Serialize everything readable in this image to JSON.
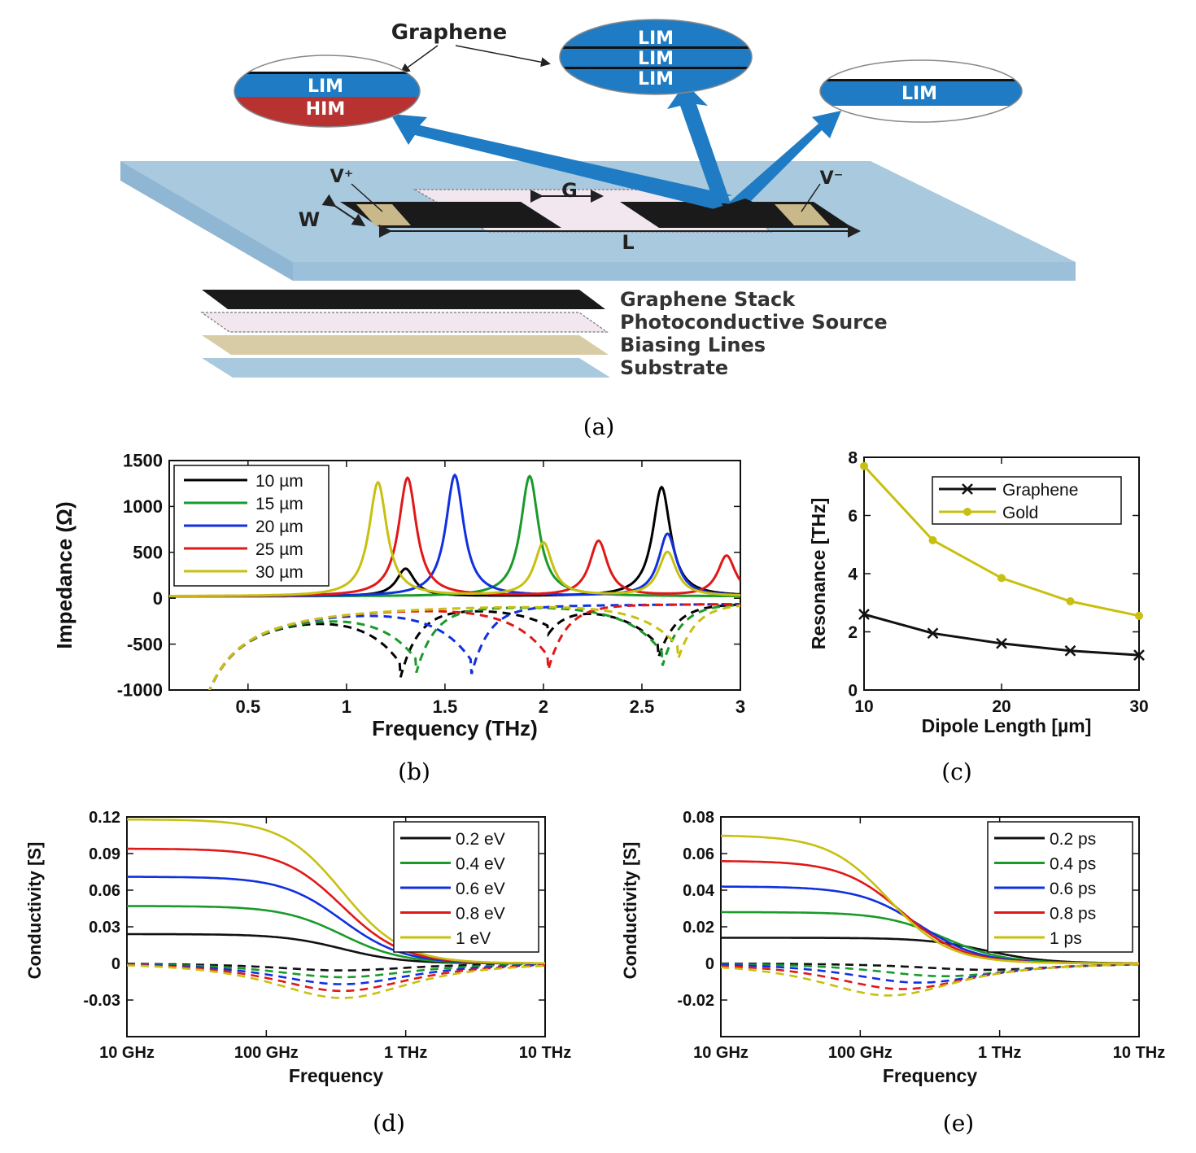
{
  "panel_a": {
    "graphene_label": "Graphene",
    "bubble_left": {
      "top": "LIM",
      "bottom": "HIM"
    },
    "bubble_middle": {
      "layers": [
        "LIM",
        "LIM",
        "LIM"
      ]
    },
    "bubble_right": {
      "layer": "LIM"
    },
    "dimension_labels": {
      "v_plus": "V⁺",
      "v_minus": "V⁻",
      "w": "W",
      "g": "G",
      "l": "L"
    },
    "layers": [
      "Graphene Stack",
      "Photoconductive Source",
      "Biasing Lines",
      "Substrate"
    ],
    "colors": {
      "blue": "#1f7cc4",
      "him": "#b83232",
      "substrate": "#a9c9df",
      "gold": "#c9b88a",
      "black": "#1a1a1a",
      "pink": "#efe4ee"
    },
    "caption": "(a)"
  },
  "chart_data": [
    {
      "id": "b",
      "type": "line",
      "xlabel": "Frequency (THz)",
      "ylabel": "Impedance (Ω)",
      "xlim": [
        0.1,
        3
      ],
      "ylim": [
        -1000,
        1500
      ],
      "xticks": [
        0.5,
        1,
        1.5,
        2,
        2.5,
        3
      ],
      "yticks": [
        -1000,
        -500,
        0,
        500,
        1000,
        1500
      ],
      "legend_position": "top-left",
      "note": "solid = real part, dashed = imaginary part",
      "series": [
        {
          "name": "10 µm",
          "color": "#000000",
          "peaks_real": [
            [
              1.3,
              300
            ],
            [
              2.6,
              1190
            ]
          ],
          "dips_imag": [
            [
              1.27,
              -760
            ],
            [
              2.02,
              -300
            ],
            [
              2.58,
              -600
            ]
          ]
        },
        {
          "name": "15 µm",
          "color": "#1a9a2a",
          "peaks_real": [
            [
              1.93,
              1310
            ]
          ],
          "dips_imag": [
            [
              1.35,
              -720
            ],
            [
              2.6,
              -700
            ]
          ]
        },
        {
          "name": "20 µm",
          "color": "#1030e0",
          "peaks_real": [
            [
              1.55,
              1320
            ],
            [
              2.63,
              680
            ]
          ],
          "dips_imag": [
            [
              1.63,
              -760
            ]
          ]
        },
        {
          "name": "25 µm",
          "color": "#e01818",
          "peaks_real": [
            [
              1.31,
              1290
            ],
            [
              2.28,
              600
            ],
            [
              2.93,
              440
            ]
          ],
          "dips_imag": [
            [
              2.02,
              -730
            ]
          ]
        },
        {
          "name": "30 µm",
          "color": "#c8c010",
          "peaks_real": [
            [
              1.16,
              1240
            ],
            [
              2.0,
              580
            ],
            [
              2.63,
              480
            ]
          ],
          "dips_imag": [
            [
              2.68,
              -620
            ]
          ]
        }
      ],
      "caption": "(b)"
    },
    {
      "id": "c",
      "type": "line",
      "xlabel": "Dipole Length [µm]",
      "ylabel": "Resonance [THz]",
      "xlim": [
        10,
        30
      ],
      "ylim": [
        0,
        8
      ],
      "xticks": [
        10,
        20,
        30
      ],
      "yticks": [
        0,
        2,
        4,
        6,
        8
      ],
      "legend_position": "top-right",
      "x": [
        10,
        15,
        20,
        25,
        30
      ],
      "series": [
        {
          "name": "Graphene",
          "color": "#111111",
          "marker": "x",
          "values": [
            2.6,
            1.95,
            1.6,
            1.35,
            1.2
          ]
        },
        {
          "name": "Gold",
          "color": "#c8c010",
          "marker": "o",
          "values": [
            7.7,
            5.15,
            3.85,
            3.05,
            2.55
          ]
        }
      ],
      "caption": "(c)"
    },
    {
      "id": "d",
      "type": "line",
      "xscale": "log",
      "xlabel": "Frequency",
      "ylabel": "Conductivity [S]",
      "xlim_hz": [
        10000000000.0,
        10000000000000.0
      ],
      "ylim": [
        -0.06,
        0.12
      ],
      "xtick_labels": [
        "10 GHz",
        "100 GHz",
        "1 THz",
        "10 THz"
      ],
      "ytick_labels": [
        "0.12",
        "0.09",
        "0.06",
        "0.03",
        "0",
        "-0.03"
      ],
      "yticks": [
        0.12,
        0.09,
        0.06,
        0.03,
        0,
        -0.03
      ],
      "legend_position": "top-right",
      "note": "solid = real part, dashed = imaginary part",
      "series": [
        {
          "name": "0.2 eV",
          "color": "#111111",
          "dc": 0.024
        },
        {
          "name": "0.4 eV",
          "color": "#1a9a2a",
          "dc": 0.047
        },
        {
          "name": "0.6 eV",
          "color": "#1030e0",
          "dc": 0.071
        },
        {
          "name": "0.8 eV",
          "color": "#e01818",
          "dc": 0.094
        },
        {
          "name": "1 eV",
          "color": "#c8c010",
          "dc": 0.118
        }
      ],
      "corner_freq_hz": [
        350000000000.0,
        350000000000.0,
        350000000000.0,
        350000000000.0,
        350000000000.0
      ],
      "caption": "(d)"
    },
    {
      "id": "e",
      "type": "line",
      "xscale": "log",
      "xlabel": "Frequency",
      "ylabel": "Conductivity [S]",
      "xlim_hz": [
        10000000000.0,
        10000000000000.0
      ],
      "ylim": [
        -0.04,
        0.08
      ],
      "xtick_labels": [
        "10 GHz",
        "100 GHz",
        "1 THz",
        "10 THz"
      ],
      "ytick_labels": [
        "0.08",
        "0.06",
        "0.04",
        "0.02",
        "0",
        "-0.02"
      ],
      "yticks": [
        0.08,
        0.06,
        0.04,
        0.02,
        0,
        -0.02
      ],
      "legend_position": "top-right",
      "note": "solid = real part, dashed = imaginary part",
      "series": [
        {
          "name": "0.2 ps",
          "color": "#111111",
          "dc": 0.014
        },
        {
          "name": "0.4 ps",
          "color": "#1a9a2a",
          "dc": 0.028
        },
        {
          "name": "0.6 ps",
          "color": "#1030e0",
          "dc": 0.042
        },
        {
          "name": "0.8 ps",
          "color": "#e01818",
          "dc": 0.056
        },
        {
          "name": "1 ps",
          "color": "#c8c010",
          "dc": 0.07
        }
      ],
      "corner_freq_hz": [
        800000000000.0,
        400000000000.0,
        265000000000.0,
        200000000000.0,
        160000000000.0
      ],
      "caption": "(e)"
    }
  ]
}
